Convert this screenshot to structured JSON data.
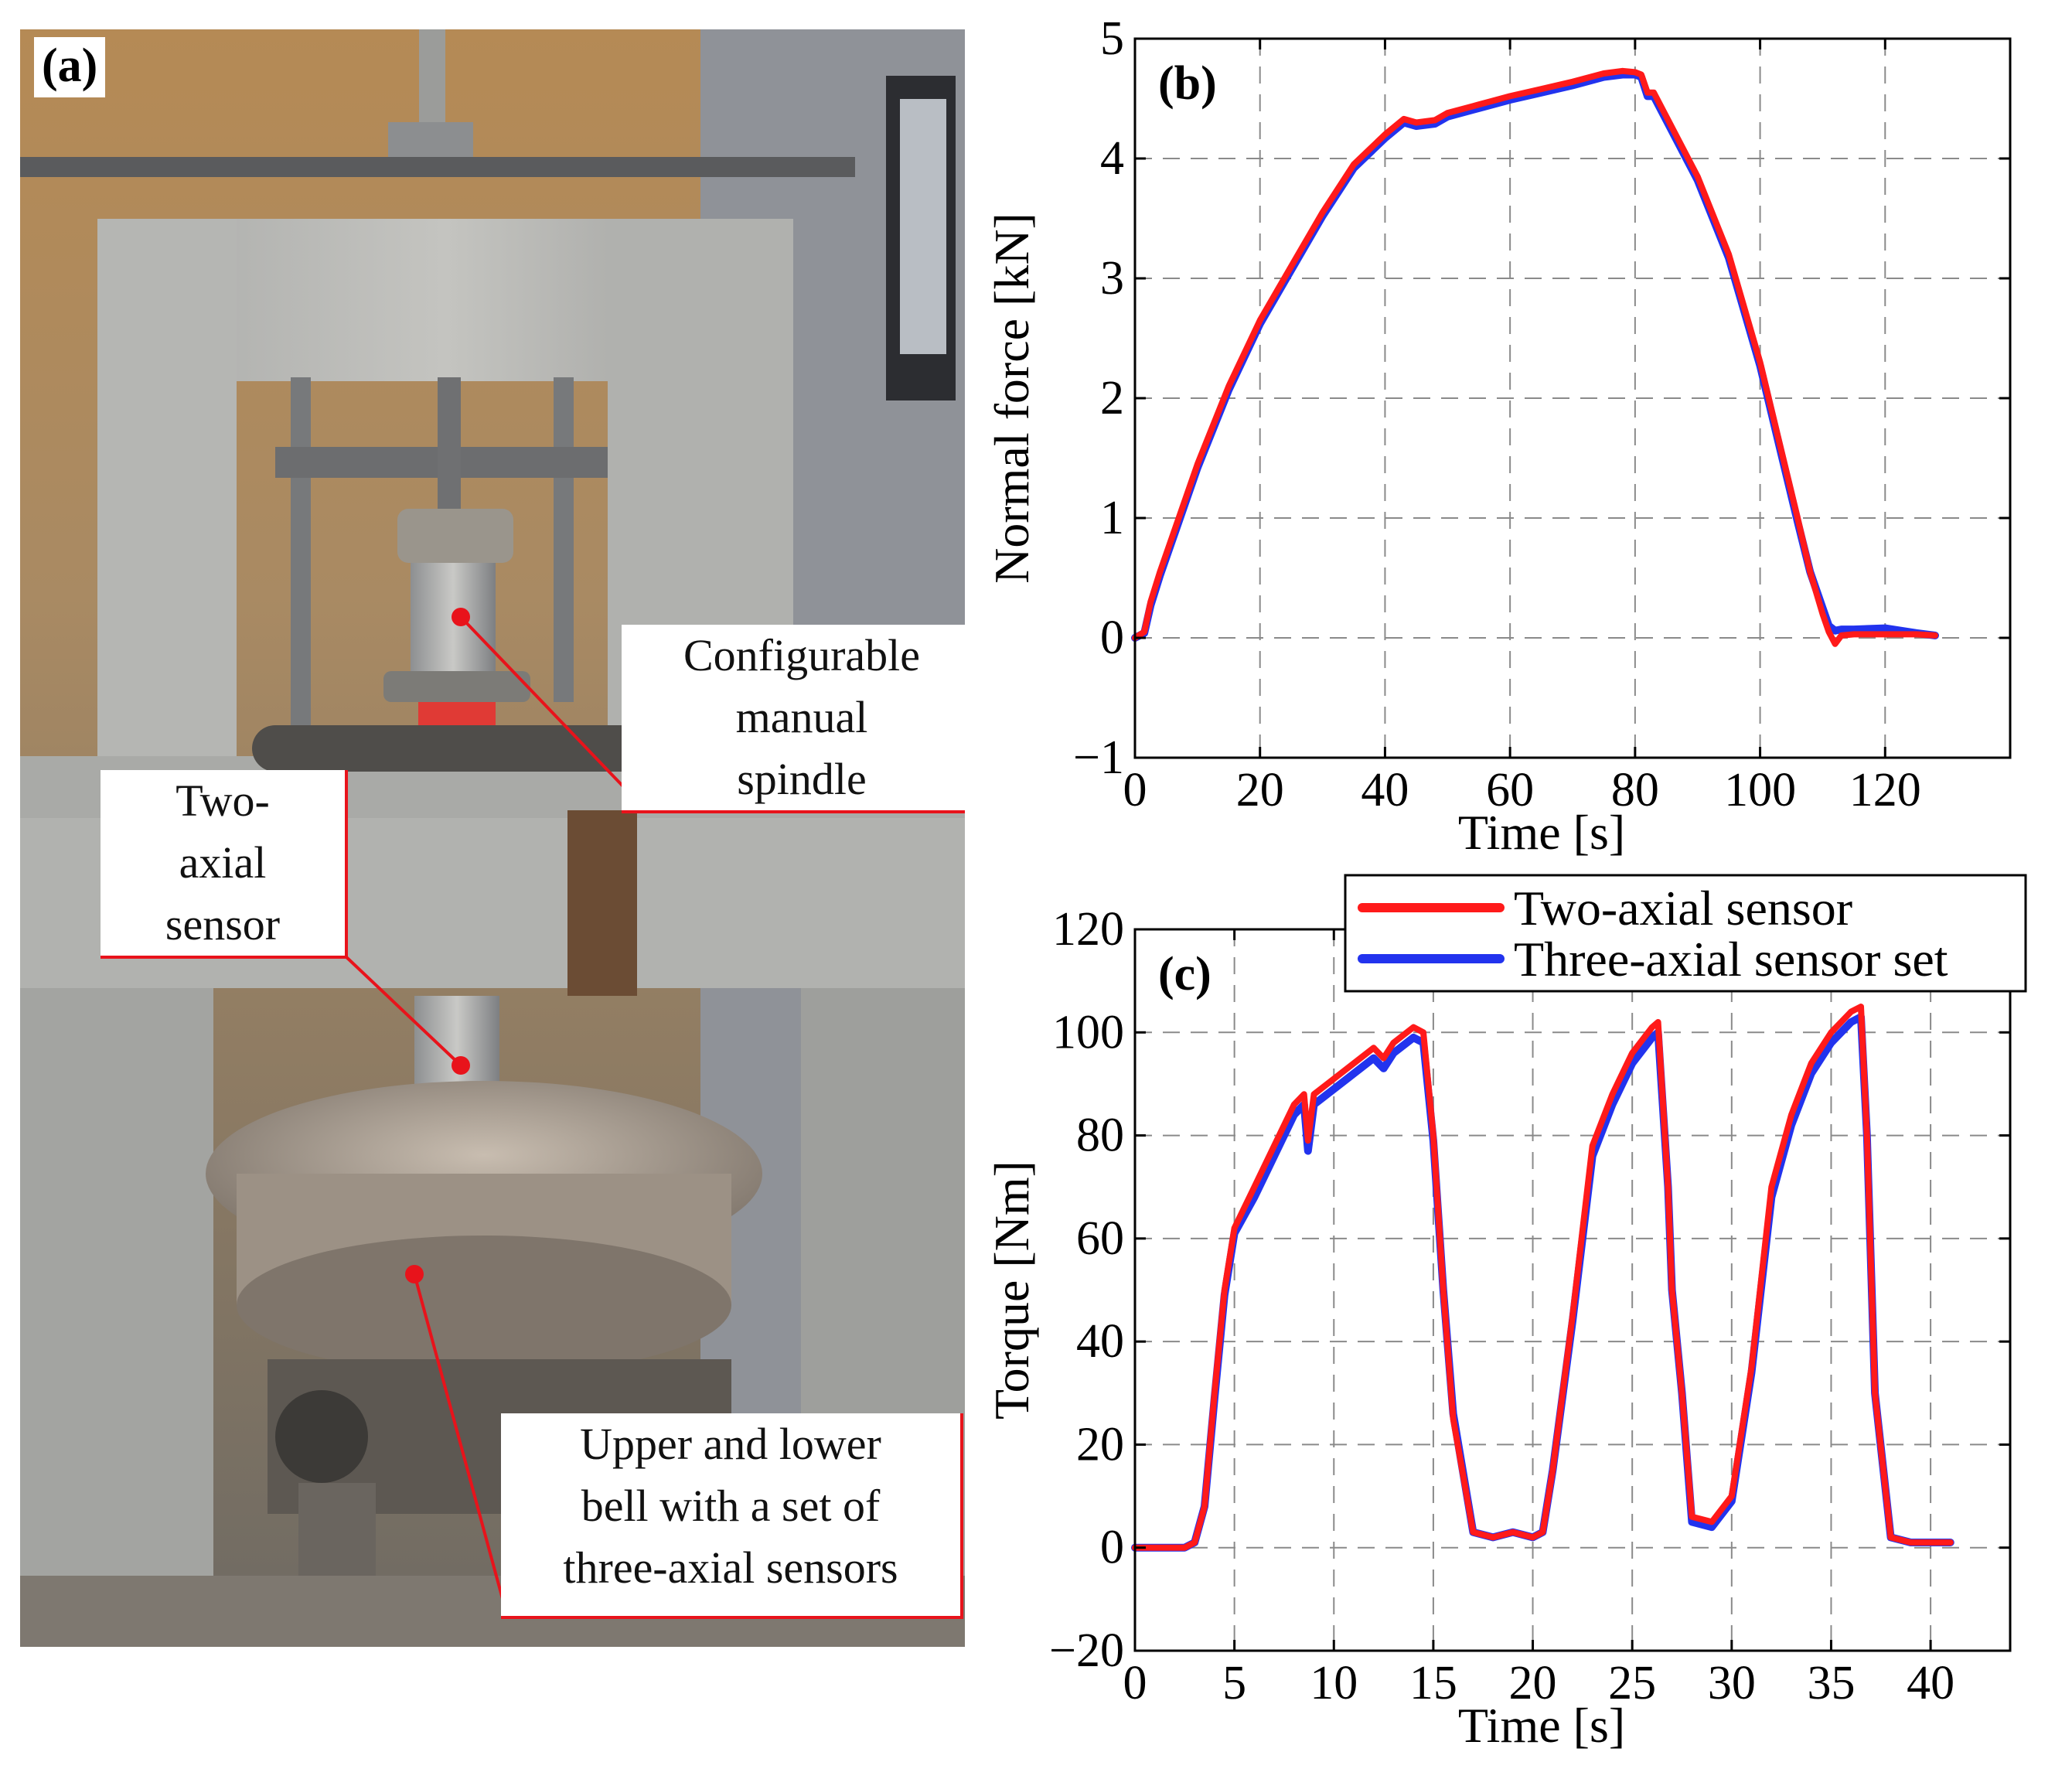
{
  "photo": {
    "panel_label": "(a)",
    "callouts": {
      "spindle": "Configurable\nmanual\nspindle",
      "sensor": "Two-\naxial\nsensor",
      "bell": "Upper and lower\nbell with a set of\nthree-axial sensors"
    },
    "accent_color": "#e8131b"
  },
  "chart_data": [
    {
      "panel": "(b)",
      "type": "line",
      "xlabel": "Time [s]",
      "ylabel": "Normal force [kN]",
      "xlim": [
        0,
        140
      ],
      "ylim": [
        -1,
        5
      ],
      "xticks": [
        0,
        20,
        40,
        60,
        80,
        100,
        120
      ],
      "yticks": [
        -1,
        0,
        1,
        2,
        3,
        4,
        5
      ],
      "grid": true,
      "series": [
        {
          "name": "Two-axial sensor",
          "color": "#ff1a1a",
          "x": [
            0,
            1.5,
            2.5,
            4,
            6,
            10,
            15,
            20,
            25,
            30,
            35,
            40,
            43,
            45,
            48,
            50,
            55,
            60,
            65,
            70,
            75,
            78,
            80,
            81,
            82,
            83,
            85,
            90,
            95,
            100,
            103,
            106,
            108,
            110,
            111,
            112,
            113,
            115,
            120,
            125,
            128
          ],
          "y": [
            0,
            0.05,
            0.3,
            0.55,
            0.85,
            1.45,
            2.1,
            2.65,
            3.1,
            3.55,
            3.95,
            4.2,
            4.33,
            4.3,
            4.32,
            4.38,
            4.45,
            4.52,
            4.58,
            4.64,
            4.71,
            4.73,
            4.72,
            4.7,
            4.55,
            4.55,
            4.35,
            3.85,
            3.2,
            2.3,
            1.65,
            1.0,
            0.55,
            0.2,
            0.05,
            -0.05,
            0.02,
            0.03,
            0.03,
            0.03,
            0.02
          ]
        },
        {
          "name": "Three-axial sensor set",
          "color": "#2233ee",
          "x": [
            0,
            1.5,
            2.5,
            4,
            6,
            10,
            15,
            20,
            25,
            30,
            35,
            40,
            43,
            45,
            48,
            50,
            55,
            60,
            65,
            70,
            75,
            78,
            80,
            81,
            82,
            83,
            85,
            90,
            95,
            100,
            103,
            106,
            108,
            110,
            111,
            112,
            113,
            115,
            120,
            125,
            128
          ],
          "y": [
            0,
            0.04,
            0.27,
            0.52,
            0.82,
            1.42,
            2.07,
            2.62,
            3.07,
            3.52,
            3.92,
            4.17,
            4.3,
            4.27,
            4.29,
            4.35,
            4.42,
            4.49,
            4.55,
            4.61,
            4.68,
            4.7,
            4.7,
            4.68,
            4.52,
            4.52,
            4.32,
            3.82,
            3.17,
            2.27,
            1.62,
            0.97,
            0.55,
            0.25,
            0.1,
            0.06,
            0.07,
            0.07,
            0.08,
            0.04,
            0.02
          ]
        }
      ]
    },
    {
      "panel": "(c)",
      "type": "line",
      "xlabel": "Time [s]",
      "ylabel": "Torque [Nm]",
      "xlim": [
        0,
        44
      ],
      "ylim": [
        -20,
        120
      ],
      "xticks": [
        0,
        5,
        10,
        15,
        20,
        25,
        30,
        35,
        40
      ],
      "yticks": [
        -20,
        0,
        20,
        40,
        60,
        80,
        100,
        120
      ],
      "grid": true,
      "legend": "top-right",
      "series": [
        {
          "name": "Two-axial sensor",
          "color": "#ff1a1a",
          "x": [
            0,
            2.5,
            3,
            3.5,
            4,
            4.5,
            5,
            6,
            7,
            8,
            8.5,
            8.7,
            9,
            10,
            11,
            12,
            12.5,
            13,
            14,
            14.5,
            15,
            15.5,
            16,
            17,
            18,
            19,
            20,
            20.5,
            21,
            22,
            23,
            24,
            25,
            26,
            26.3,
            26.8,
            27,
            27.5,
            28,
            29,
            30,
            31,
            32,
            33,
            34,
            35,
            36,
            36.5,
            36.8,
            37.2,
            38,
            39,
            40,
            41
          ],
          "y": [
            0,
            0,
            1,
            8,
            30,
            50,
            62,
            70,
            78,
            86,
            88,
            79,
            88,
            91,
            94,
            97,
            95,
            98,
            101,
            100,
            80,
            50,
            25,
            3,
            2,
            3,
            2,
            3,
            15,
            45,
            78,
            88,
            96,
            101,
            102,
            70,
            50,
            30,
            6,
            5,
            10,
            35,
            70,
            84,
            94,
            100,
            104,
            105,
            80,
            30,
            2,
            1,
            1,
            1
          ]
        },
        {
          "name": "Three-axial sensor set",
          "color": "#2233ee",
          "x": [
            0,
            2.5,
            3,
            3.5,
            4,
            4.5,
            5,
            6,
            7,
            8,
            8.5,
            8.7,
            9,
            10,
            11,
            12,
            12.5,
            13,
            14,
            14.5,
            15,
            15.5,
            16,
            17,
            18,
            19,
            20,
            20.5,
            21,
            22,
            23,
            24,
            25,
            26,
            26.3,
            26.8,
            27,
            27.5,
            28,
            29,
            30,
            31,
            32,
            33,
            34,
            35,
            36,
            36.5,
            36.8,
            37.2,
            38,
            39,
            40,
            41
          ],
          "y": [
            0,
            0,
            1,
            8,
            29,
            49,
            61,
            68,
            76,
            84,
            86,
            77,
            86,
            89,
            92,
            95,
            93,
            96,
            99,
            98,
            79,
            50,
            26,
            3,
            2,
            3,
            2,
            3,
            15,
            44,
            76,
            86,
            94,
            99,
            100,
            70,
            50,
            30,
            5,
            4,
            9,
            34,
            68,
            82,
            92,
            98,
            102,
            103,
            80,
            30,
            2,
            1,
            1,
            1
          ]
        }
      ]
    }
  ]
}
